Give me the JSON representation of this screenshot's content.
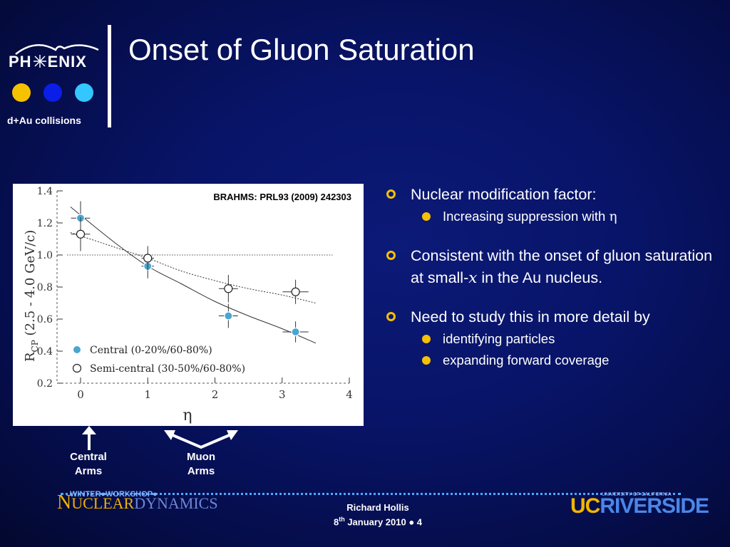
{
  "slide": {
    "title": "Onset of Gluon Saturation",
    "logo": {
      "name": "PH✳ENIX",
      "subtitle": "d+Au collisions",
      "dot_colors": [
        "#f6c200",
        "#0a1ee8",
        "#33c6ff"
      ]
    },
    "arrows": {
      "central": "Central Arms",
      "muon": "Muon Arms",
      "central_l1": "Central",
      "central_l2": "Arms",
      "muon_l1": "Muon",
      "muon_l2": "Arms"
    },
    "bullets": [
      {
        "text": "Nuclear modification factor:",
        "sub": [
          {
            "pre": "Increasing suppression with ",
            "sym": "η"
          }
        ]
      },
      {
        "pre": "Consistent with the onset of gluon saturation at small-",
        "sym": "x",
        "post": " in the Au nucleus."
      },
      {
        "text": "Need to study this in more detail by",
        "sub": [
          {
            "text": "identifying particles"
          },
          {
            "text": "expanding forward coverage"
          }
        ]
      }
    ],
    "footer": {
      "workshop": "WINTER●WORKSHOP●",
      "logo_text": "NUCLEARDYNAMICS",
      "logo_n": "N",
      "logo_rest1": "UCLEAR",
      "logo_rest2": "DYNAMICS",
      "author": "Richard Hollis",
      "date_day": "8",
      "date_sup": "th",
      "date_rest": " January 2010 ● 4",
      "ucr_uc": "UC",
      "ucr_riv": "RIVERSIDE",
      "ucr_small": "UNIVERSITY OF CALIFORNIA"
    },
    "accent_color": "#f6c000"
  },
  "chart_data": {
    "type": "scatter",
    "citation": "BRAHMS: PRL93 (2009) 242303",
    "xlabel": "η",
    "ylabel": "RCP (2.5 - 4.0 GeV/c)",
    "ylabel_main": "R",
    "ylabel_sub": "CP",
    "ylabel_rest": " (2.5 - 4.0 GeV/c)",
    "xlim": [
      -0.35,
      4
    ],
    "ylim": [
      0.2,
      1.4
    ],
    "x_ticks": [
      0,
      1,
      2,
      3,
      4
    ],
    "y_ticks": [
      0.2,
      0.4,
      0.6,
      0.8,
      1.0,
      1.2,
      1.4
    ],
    "y_tick_labels": [
      "0.2",
      "0.4",
      "0.6",
      "0.8",
      "1.0",
      "1.2",
      "1.4"
    ],
    "reference_line": 1.0,
    "series": [
      {
        "name": "Central (0-20%/60-80%)",
        "style": "filled",
        "color": "#4aa6d0",
        "x": [
          0,
          1,
          2.2,
          3.2
        ],
        "y": [
          1.23,
          0.93,
          0.62,
          0.52
        ],
        "y_err": [
          0.07,
          0.04,
          0.04,
          0.03
        ],
        "x_err": [
          0.1,
          0.05,
          0.1,
          0.15
        ],
        "fit": [
          [
            -0.15,
            1.3
          ],
          [
            0.5,
            1.08
          ],
          [
            1.0,
            0.93
          ],
          [
            1.5,
            0.82
          ],
          [
            2.0,
            0.71
          ],
          [
            2.5,
            0.62
          ],
          [
            3.0,
            0.54
          ],
          [
            3.5,
            0.45
          ]
        ]
      },
      {
        "name": "Semi-central (30-50%/60-80%)",
        "style": "open",
        "color": "#000000",
        "x": [
          0,
          1,
          2.2,
          3.2
        ],
        "y": [
          1.13,
          0.98,
          0.79,
          0.77
        ],
        "y_err": [
          0.07,
          0.04,
          0.05,
          0.04
        ],
        "x_err": [
          0.1,
          0.05,
          0.1,
          0.15
        ],
        "fit": [
          [
            -0.15,
            1.14
          ],
          [
            0.5,
            1.05
          ],
          [
            1.0,
            0.98
          ],
          [
            1.5,
            0.9
          ],
          [
            2.0,
            0.84
          ],
          [
            2.5,
            0.79
          ],
          [
            3.0,
            0.75
          ],
          [
            3.5,
            0.7
          ]
        ]
      }
    ]
  }
}
